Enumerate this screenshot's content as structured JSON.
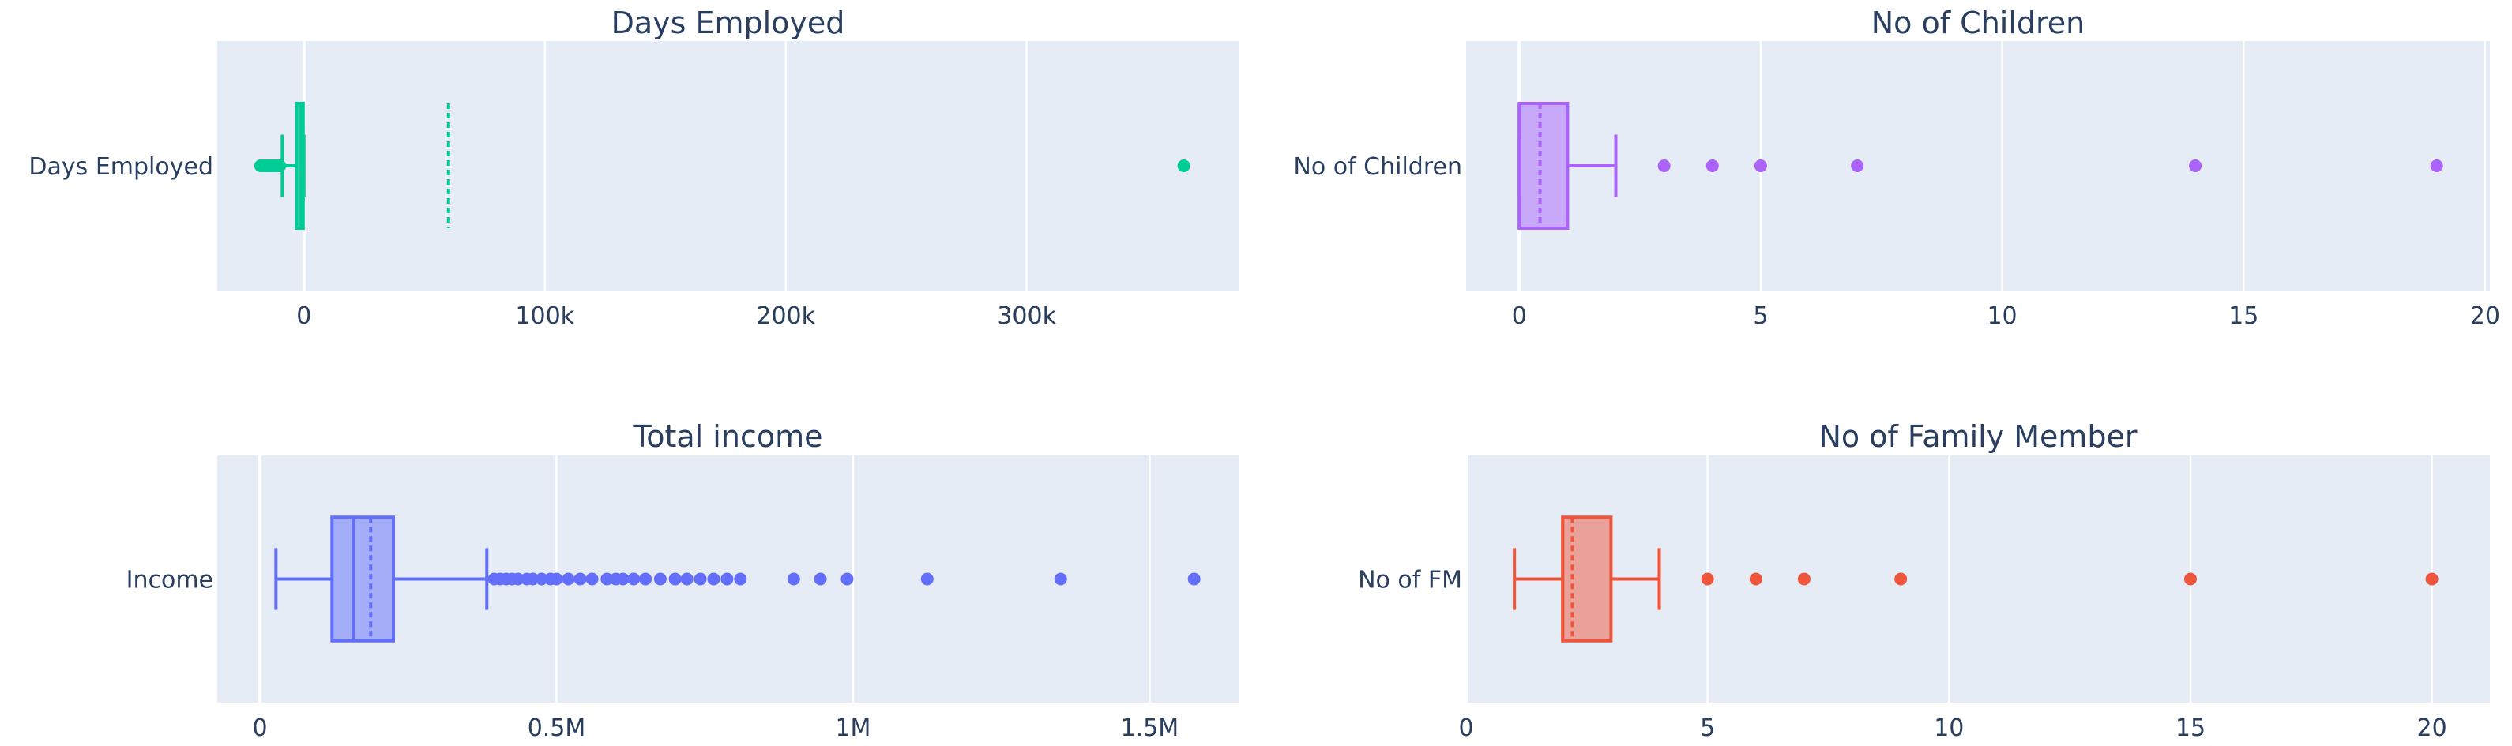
{
  "chart_data": [
    {
      "type": "box",
      "title": "Days Employed",
      "category": "Days Employed",
      "color": "#00cc96",
      "xlim": [
        -36000,
        388000
      ],
      "ticks": [
        0,
        100000,
        200000,
        300000
      ],
      "tick_labels": [
        "0",
        "100k",
        "200k",
        "300k"
      ],
      "min": -9000,
      "q1": -3000,
      "median": -1200,
      "q3": -300,
      "max": 0,
      "mean": 60000,
      "outliers_low": [
        -18000,
        -17000,
        -16000,
        -15000,
        -14000,
        -13000,
        -12000,
        -11000,
        -10000
      ],
      "outliers_high": [
        365243
      ]
    },
    {
      "type": "box",
      "title": "No of Children",
      "category": "No of Children",
      "color": "#ab63fa",
      "xlim": [
        -1.1,
        20.1
      ],
      "ticks": [
        0,
        5,
        10,
        15,
        20
      ],
      "tick_labels": [
        "0",
        "5",
        "10",
        "15",
        "20"
      ],
      "min": 0,
      "q1": 0,
      "median": 0,
      "q3": 1,
      "max": 2,
      "mean": 0.43,
      "outliers_low": [],
      "outliers_high": [
        3,
        4,
        5,
        7,
        14,
        19
      ]
    },
    {
      "type": "box",
      "title": "Total income",
      "category": "Income",
      "color": "#636efa",
      "xlim": [
        -72000,
        1650000
      ],
      "ticks": [
        0,
        500000,
        1000000,
        1500000
      ],
      "tick_labels": [
        "0",
        "0.5M",
        "1M",
        "1.5M"
      ],
      "min": 27000,
      "q1": 121500,
      "median": 157500,
      "q3": 225000,
      "max": 382500,
      "mean": 186700,
      "outliers_low": [],
      "outliers_high": [
        395000,
        405000,
        415000,
        425000,
        435000,
        450000,
        460000,
        475000,
        490000,
        500000,
        520000,
        540000,
        560000,
        585000,
        600000,
        612000,
        630000,
        650000,
        675000,
        700000,
        720000,
        742500,
        765000,
        787500,
        810000,
        900000,
        945000,
        990000,
        1125000,
        1350000,
        1575000
      ]
    },
    {
      "type": "box",
      "title": "No of Family Member",
      "category": "No of FM",
      "color": "#ef553b",
      "xlim": [
        0,
        21.2
      ],
      "ticks": [
        0,
        5,
        10,
        15,
        20
      ],
      "tick_labels": [
        "0",
        "5",
        "10",
        "15",
        "20"
      ],
      "min": 1,
      "q1": 2,
      "median": 2,
      "q3": 3,
      "max": 4,
      "mean": 2.2,
      "outliers_low": [],
      "outliers_high": [
        5,
        6,
        7,
        9,
        15,
        20
      ]
    }
  ]
}
